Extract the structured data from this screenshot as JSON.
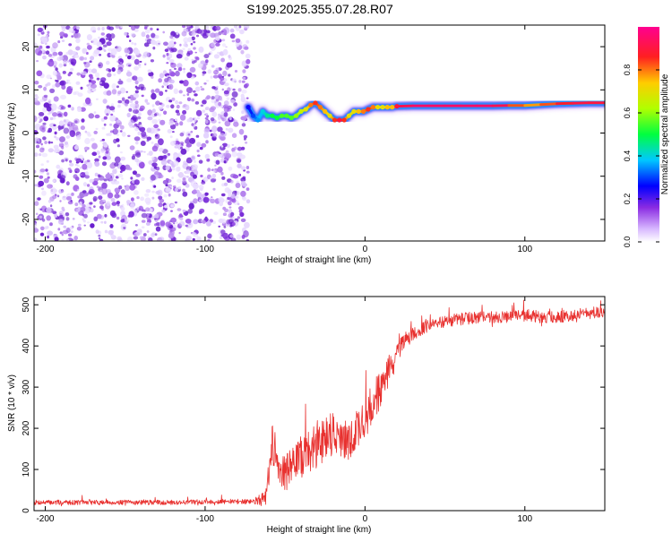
{
  "page": {
    "title": "S199.2025.355.07.28.R07"
  },
  "colors": {
    "snr_line": "#e8312f",
    "spectrogram_noise": "#8a2be2",
    "axis": "#000000"
  },
  "chart_data": [
    {
      "type": "heatmap",
      "name": "spectrogram",
      "xlabel": "Height of straight line (km)",
      "ylabel": "Frequency (Hz)",
      "xlim": [
        -207,
        150
      ],
      "ylim": [
        -25,
        25
      ],
      "xticks": [
        -200,
        -100,
        0,
        100
      ],
      "xtick_labels": [
        "-200",
        "-100",
        "0",
        "100"
      ],
      "yticks": [
        -20,
        -10,
        0,
        10,
        20
      ],
      "ytick_labels": [
        "-20",
        "-10",
        "0",
        "10",
        "20"
      ],
      "noise_region_x": [
        -207,
        -73
      ],
      "signal_trace": {
        "x": [
          -73,
          -70,
          -67,
          -64,
          -61,
          -58,
          -55,
          -52,
          -49,
          -46,
          -43,
          -40,
          -37,
          -34,
          -31,
          -28,
          -25,
          -22,
          -19,
          -16,
          -13,
          -10,
          -7,
          -4,
          -1,
          2,
          5,
          8,
          11,
          14,
          17,
          20,
          30,
          40,
          50,
          60,
          70,
          80,
          90,
          100,
          110,
          120,
          130,
          140,
          150
        ],
        "freq": [
          6,
          4,
          3,
          5,
          4,
          4,
          3.5,
          4,
          4,
          3.5,
          4,
          5,
          5.5,
          6.5,
          7,
          6,
          5,
          4,
          3,
          3,
          3,
          4,
          5,
          5,
          5,
          5.5,
          6,
          6,
          6,
          6,
          6,
          6.2,
          6.3,
          6.3,
          6.3,
          6.3,
          6.3,
          6.3,
          6.4,
          6.4,
          6.6,
          6.8,
          6.9,
          7,
          7
        ],
        "amplitude": [
          0.25,
          0.3,
          0.35,
          0.4,
          0.45,
          0.5,
          0.5,
          0.55,
          0.55,
          0.55,
          0.6,
          0.65,
          0.7,
          0.8,
          0.85,
          0.8,
          0.75,
          0.7,
          0.85,
          0.9,
          0.85,
          0.7,
          0.7,
          0.75,
          0.8,
          0.85,
          0.8,
          0.7,
          0.7,
          0.75,
          0.75,
          0.9,
          0.95,
          0.95,
          0.95,
          0.95,
          0.95,
          0.95,
          0.9,
          0.75,
          0.8,
          0.85,
          0.9,
          0.9,
          0.9
        ]
      },
      "colorbar": {
        "label": "Normalized spectral amplitude",
        "range": [
          0,
          1
        ],
        "ticks": [
          0.0,
          0.2,
          0.4,
          0.6,
          0.8
        ],
        "tick_labels": [
          "0.0",
          "0.2",
          "0.4",
          "0.6",
          "0.8"
        ]
      }
    },
    {
      "type": "line",
      "name": "snr",
      "xlabel": "Height of straight line (km)",
      "ylabel": "SNR (10 * v/v)",
      "xlim": [
        -207,
        150
      ],
      "ylim": [
        0,
        520
      ],
      "xticks": [
        -200,
        -100,
        0,
        100
      ],
      "xtick_labels": [
        "-200",
        "-100",
        "0",
        "100"
      ],
      "yticks": [
        0,
        100,
        200,
        300,
        400,
        500
      ],
      "ytick_labels": [
        "0",
        "100",
        "200",
        "300",
        "400",
        "500"
      ],
      "series": [
        {
          "name": "SNR",
          "x": [
            -207,
            -180,
            -150,
            -120,
            -90,
            -70,
            -62,
            -58,
            -55,
            -50,
            -45,
            -40,
            -35,
            -30,
            -25,
            -20,
            -15,
            -10,
            -5,
            0,
            5,
            10,
            15,
            20,
            25,
            30,
            40,
            50,
            60,
            70,
            80,
            90,
            100,
            110,
            120,
            130,
            140,
            150
          ],
          "values": [
            20,
            20,
            20,
            20,
            22,
            22,
            30,
            150,
            120,
            90,
            110,
            130,
            140,
            160,
            180,
            190,
            170,
            160,
            200,
            220,
            260,
            300,
            340,
            380,
            410,
            430,
            450,
            460,
            465,
            470,
            470,
            470,
            475,
            470,
            470,
            475,
            480,
            480
          ],
          "noise_amp": [
            12,
            12,
            12,
            12,
            12,
            12,
            40,
            160,
            90,
            90,
            100,
            110,
            110,
            120,
            110,
            110,
            100,
            100,
            100,
            110,
            100,
            90,
            80,
            60,
            40,
            35,
            30,
            30,
            30,
            30,
            30,
            30,
            30,
            30,
            30,
            30,
            30,
            30
          ]
        }
      ]
    }
  ]
}
